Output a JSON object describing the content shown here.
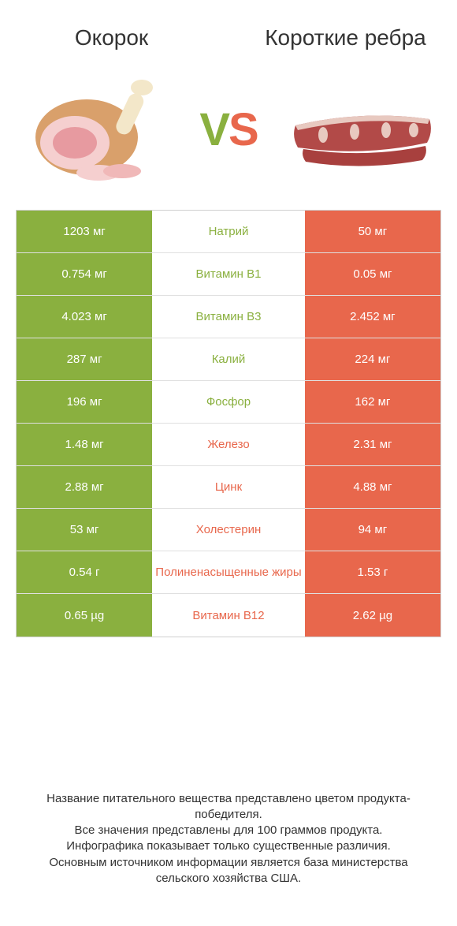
{
  "colors": {
    "green": "#8ab03f",
    "orange": "#e8674c",
    "white": "#ffffff",
    "text": "#333333",
    "border": "#d0d0d0"
  },
  "header": {
    "left": "Окорок",
    "right": "Короткие ребра"
  },
  "vs": {
    "v": "V",
    "s": "S"
  },
  "rows": [
    {
      "left": "1203 мг",
      "mid": "Натрий",
      "right": "50 мг",
      "winner": "left"
    },
    {
      "left": "0.754 мг",
      "mid": "Витамин B1",
      "right": "0.05 мг",
      "winner": "left"
    },
    {
      "left": "4.023 мг",
      "mid": "Витамин B3",
      "right": "2.452 мг",
      "winner": "left"
    },
    {
      "left": "287 мг",
      "mid": "Калий",
      "right": "224 мг",
      "winner": "left"
    },
    {
      "left": "196 мг",
      "mid": "Фосфор",
      "right": "162 мг",
      "winner": "left"
    },
    {
      "left": "1.48 мг",
      "mid": "Железо",
      "right": "2.31 мг",
      "winner": "right"
    },
    {
      "left": "2.88 мг",
      "mid": "Цинк",
      "right": "4.88 мг",
      "winner": "right"
    },
    {
      "left": "53 мг",
      "mid": "Холестерин",
      "right": "94 мг",
      "winner": "right"
    },
    {
      "left": "0.54 г",
      "mid": "Полиненасыщенные жиры",
      "right": "1.53 г",
      "winner": "right"
    },
    {
      "left": "0.65 µg",
      "mid": "Витамин B12",
      "right": "2.62 µg",
      "winner": "right"
    }
  ],
  "footer": {
    "line1": "Название питательного вещества представлено цветом продукта-победителя.",
    "line2": "Все значения представлены для 100 граммов продукта.",
    "line3": "Инфографика показывает только существенные различия.",
    "line4": "Основным источником информации является база министерства сельского хозяйства США."
  }
}
